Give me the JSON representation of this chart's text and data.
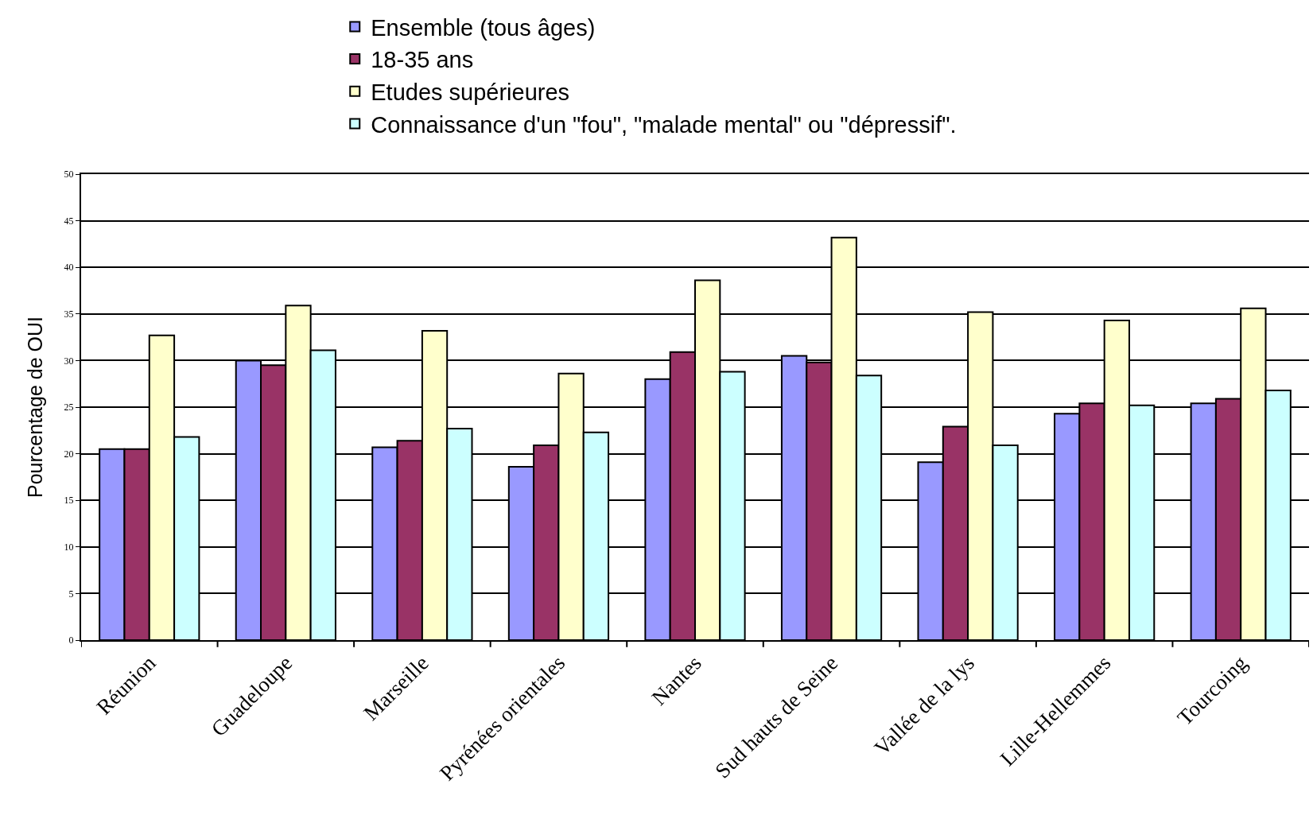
{
  "chart_data": {
    "type": "bar",
    "ylabel": "Pourcentage de OUI",
    "categories": [
      "Réunion",
      "Guadeloupe",
      "Marseille",
      "Pyrénées orientales",
      "Nantes",
      "Sud hauts de Seine",
      "Vallée de la lys",
      "Lille-Hellemmes",
      "Tourcoing"
    ],
    "series": [
      {
        "name": "Ensemble (tous âges)",
        "color": "#9999ff",
        "values": [
          20.5,
          30,
          20.7,
          18.6,
          28,
          30.5,
          19.1,
          24.3,
          25.4
        ]
      },
      {
        "name": "18-35 ans",
        "color": "#993366",
        "values": [
          20.5,
          29.5,
          21.4,
          20.9,
          30.9,
          29.8,
          22.9,
          25.4,
          25.9
        ]
      },
      {
        "name": "Etudes supérieures",
        "color": "#ffffcc",
        "values": [
          32.7,
          35.9,
          33.2,
          28.6,
          38.6,
          43.2,
          35.2,
          34.3,
          35.6
        ]
      },
      {
        "name": "Connaissance d'un \"fou\", \"malade mental\" ou \"dépressif\".",
        "color": "#ccffff",
        "values": [
          21.8,
          31.1,
          22.7,
          22.3,
          28.8,
          28.4,
          20.9,
          25.2,
          26.8
        ]
      }
    ],
    "ylim": [
      0,
      50
    ],
    "yticks": [
      0,
      5,
      10,
      15,
      20,
      25,
      30,
      35,
      40,
      45,
      50
    ],
    "grid": "y",
    "legend": "top"
  }
}
